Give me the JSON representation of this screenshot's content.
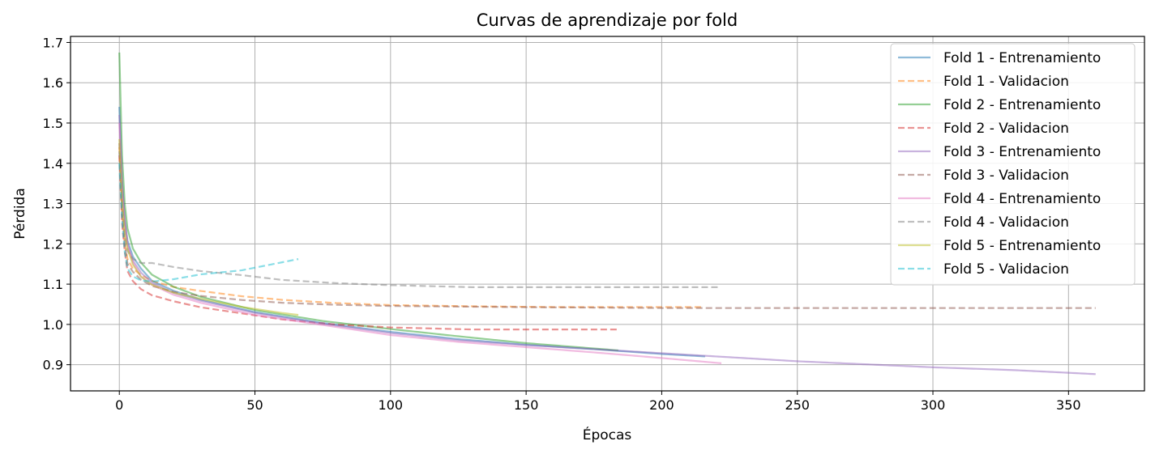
{
  "chart_data": {
    "type": "line",
    "title": "Curvas de aprendizaje por fold",
    "xlabel": "Épocas",
    "ylabel": "Pérdida",
    "xlim": [
      -18,
      378
    ],
    "ylim": [
      0.835,
      1.715
    ],
    "xticks": [
      0,
      50,
      100,
      150,
      200,
      250,
      300,
      350
    ],
    "yticks": [
      0.9,
      1.0,
      1.1,
      1.2,
      1.3,
      1.4,
      1.5,
      1.6,
      1.7
    ],
    "xtick_labels": [
      "0",
      "50",
      "100",
      "150",
      "200",
      "250",
      "300",
      "350"
    ],
    "ytick_labels": [
      "0.9",
      "1.0",
      "1.1",
      "1.2",
      "1.3",
      "1.4",
      "1.5",
      "1.6",
      "1.7"
    ],
    "grid": true,
    "legend_position": "top-right",
    "series": [
      {
        "name": "Fold 1 - Entrenamiento",
        "color": "#1f77b4",
        "style": "solid",
        "x": [
          0,
          1,
          2,
          3,
          5,
          8,
          12,
          20,
          30,
          50,
          75,
          100,
          125,
          150,
          175,
          200,
          216
        ],
        "y": [
          1.54,
          1.36,
          1.26,
          1.21,
          1.17,
          1.14,
          1.11,
          1.085,
          1.063,
          1.032,
          1.005,
          0.983,
          0.965,
          0.951,
          0.94,
          0.928,
          0.922
        ],
        "noise": 0.0025
      },
      {
        "name": "Fold 1 - Validacion",
        "color": "#ff7f0e",
        "style": "dashed",
        "x": [
          0,
          1,
          2,
          3,
          5,
          8,
          12,
          20,
          30,
          45,
          60,
          80,
          100,
          130,
          160,
          190,
          215
        ],
        "y": [
          1.44,
          1.28,
          1.2,
          1.17,
          1.145,
          1.13,
          1.115,
          1.1,
          1.09,
          1.077,
          1.068,
          1.06,
          1.055,
          1.052,
          1.05,
          1.05,
          1.05
        ],
        "noise": 0.012
      },
      {
        "name": "Fold 2 - Entrenamiento",
        "color": "#2ca02c",
        "style": "solid",
        "x": [
          0,
          1,
          2,
          3,
          5,
          8,
          12,
          20,
          30,
          50,
          75,
          100,
          125,
          150,
          184
        ],
        "y": [
          1.675,
          1.42,
          1.3,
          1.24,
          1.19,
          1.155,
          1.125,
          1.095,
          1.07,
          1.037,
          1.01,
          0.99,
          0.972,
          0.955,
          0.937
        ],
        "noise": 0.0025
      },
      {
        "name": "Fold 2 - Validacion",
        "color": "#d62728",
        "style": "dashed",
        "x": [
          0,
          1,
          2,
          3,
          5,
          8,
          12,
          20,
          30,
          45,
          60,
          80,
          100,
          130,
          160,
          184
        ],
        "y": [
          1.42,
          1.25,
          1.18,
          1.14,
          1.115,
          1.095,
          1.08,
          1.065,
          1.05,
          1.035,
          1.02,
          1.007,
          1.0,
          0.995,
          0.995,
          0.995
        ],
        "noise": 0.013
      },
      {
        "name": "Fold 3 - Entrenamiento",
        "color": "#9467bd",
        "style": "solid",
        "x": [
          0,
          1,
          2,
          3,
          5,
          8,
          12,
          20,
          30,
          50,
          75,
          100,
          125,
          150,
          175,
          200,
          250,
          300,
          330,
          360
        ],
        "y": [
          1.52,
          1.35,
          1.26,
          1.2,
          1.16,
          1.13,
          1.105,
          1.08,
          1.06,
          1.03,
          1.003,
          0.98,
          0.962,
          0.95,
          0.94,
          0.93,
          0.91,
          0.895,
          0.888,
          0.878
        ],
        "noise": 0.0025
      },
      {
        "name": "Fold 3 - Validacion",
        "color": "#8c564b",
        "style": "dashed",
        "x": [
          0,
          1,
          2,
          3,
          5,
          8,
          12,
          20,
          30,
          45,
          60,
          80,
          100,
          150,
          200,
          250,
          300,
          360
        ],
        "y": [
          1.45,
          1.28,
          1.2,
          1.16,
          1.14,
          1.12,
          1.105,
          1.09,
          1.08,
          1.07,
          1.063,
          1.058,
          1.055,
          1.052,
          1.05,
          1.05,
          1.05,
          1.05
        ],
        "noise": 0.016
      },
      {
        "name": "Fold 4 - Entrenamiento",
        "color": "#e377c2",
        "style": "solid",
        "x": [
          0,
          1,
          2,
          3,
          5,
          8,
          12,
          20,
          30,
          50,
          75,
          100,
          125,
          150,
          175,
          200,
          222
        ],
        "y": [
          1.5,
          1.33,
          1.25,
          1.2,
          1.155,
          1.12,
          1.1,
          1.075,
          1.055,
          1.025,
          1.0,
          0.975,
          0.958,
          0.945,
          0.932,
          0.918,
          0.905
        ],
        "noise": 0.0025
      },
      {
        "name": "Fold 4 - Validacion",
        "color": "#7f7f7f",
        "style": "dashed",
        "x": [
          0,
          1,
          2,
          3,
          5,
          8,
          12,
          20,
          30,
          45,
          60,
          80,
          100,
          130,
          160,
          190,
          221
        ],
        "y": [
          1.43,
          1.3,
          1.22,
          1.19,
          1.17,
          1.16,
          1.16,
          1.15,
          1.14,
          1.13,
          1.118,
          1.11,
          1.105,
          1.1,
          1.1,
          1.1,
          1.1
        ],
        "noise": 0.013
      },
      {
        "name": "Fold 5 - Entrenamiento",
        "color": "#bcbd22",
        "style": "solid",
        "x": [
          0,
          1,
          2,
          3,
          5,
          8,
          12,
          20,
          30,
          45,
          60,
          66
        ],
        "y": [
          1.46,
          1.31,
          1.23,
          1.19,
          1.15,
          1.12,
          1.1,
          1.08,
          1.065,
          1.045,
          1.03,
          1.025
        ],
        "noise": 0.0025
      },
      {
        "name": "Fold 5 - Validacion",
        "color": "#17becf",
        "style": "dashed",
        "x": [
          0,
          1,
          2,
          3,
          5,
          8,
          12,
          20,
          30,
          45,
          60,
          66
        ],
        "y": [
          1.4,
          1.26,
          1.18,
          1.145,
          1.125,
          1.115,
          1.112,
          1.118,
          1.13,
          1.14,
          1.16,
          1.168
        ],
        "noise": 0.01
      }
    ]
  }
}
